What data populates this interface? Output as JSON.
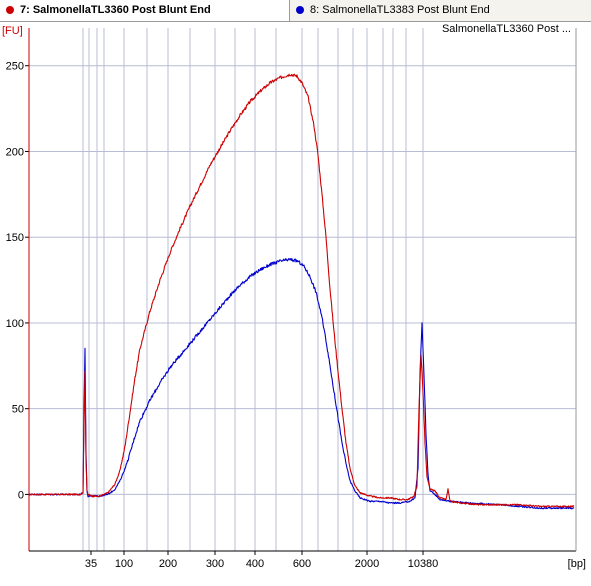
{
  "tabs": [
    {
      "label": "7: SalmonellaTL3360 Post Blunt End",
      "color": "#cc0000",
      "active": true
    },
    {
      "label": "8: SalmonellaTL3383 Post Blunt End",
      "color": "#0000cc",
      "active": false
    }
  ],
  "chart_data": {
    "type": "line",
    "title": "SalmonellaTL3360 Post ...",
    "ylabel": "[FU]",
    "xlabel": "[bp]",
    "ylim": [
      -33,
      272
    ],
    "yticks": [
      0,
      50,
      100,
      150,
      200,
      250
    ],
    "xtick_labels": [
      {
        "label": "35",
        "t": 91
      },
      {
        "label": "100",
        "t": 124
      },
      {
        "label": "200",
        "t": 168
      },
      {
        "label": "300",
        "t": 215
      },
      {
        "label": "400",
        "t": 255
      },
      {
        "label": "600",
        "t": 302
      },
      {
        "label": "2000",
        "t": 367
      },
      {
        "label": "10380",
        "t": 423
      }
    ],
    "x_unit_note": "t = migration time index (axis is non-linear in bp)",
    "grid": true,
    "series": [
      {
        "name": "7: SalmonellaTL3360 Post Blunt End",
        "color": "#cc0000",
        "points": [
          [
            29,
            0
          ],
          [
            40,
            0
          ],
          [
            60,
            0
          ],
          [
            80,
            0
          ],
          [
            83,
            1
          ],
          [
            84,
            40
          ],
          [
            85,
            72
          ],
          [
            86,
            20
          ],
          [
            87,
            2
          ],
          [
            88,
            0
          ],
          [
            92,
            -1
          ],
          [
            100,
            -1
          ],
          [
            108,
            1
          ],
          [
            115,
            6
          ],
          [
            120,
            14
          ],
          [
            125,
            28
          ],
          [
            130,
            48
          ],
          [
            135,
            68
          ],
          [
            140,
            85
          ],
          [
            150,
            107
          ],
          [
            160,
            125
          ],
          [
            170,
            141
          ],
          [
            180,
            155
          ],
          [
            190,
            168
          ],
          [
            200,
            180
          ],
          [
            210,
            192
          ],
          [
            220,
            202
          ],
          [
            230,
            212
          ],
          [
            240,
            221
          ],
          [
            250,
            229
          ],
          [
            260,
            235
          ],
          [
            270,
            240
          ],
          [
            280,
            243
          ],
          [
            290,
            245
          ],
          [
            297,
            244
          ],
          [
            302,
            240
          ],
          [
            308,
            232
          ],
          [
            314,
            215
          ],
          [
            318,
            198
          ],
          [
            322,
            175
          ],
          [
            326,
            150
          ],
          [
            330,
            120
          ],
          [
            334,
            95
          ],
          [
            338,
            72
          ],
          [
            342,
            50
          ],
          [
            346,
            30
          ],
          [
            350,
            15
          ],
          [
            355,
            5
          ],
          [
            360,
            1
          ],
          [
            370,
            -1
          ],
          [
            380,
            -2
          ],
          [
            390,
            -2
          ],
          [
            400,
            -3
          ],
          [
            408,
            -3
          ],
          [
            414,
            -1
          ],
          [
            417,
            5
          ],
          [
            419,
            50
          ],
          [
            421,
            82
          ],
          [
            423,
            60
          ],
          [
            425,
            30
          ],
          [
            427,
            10
          ],
          [
            430,
            3
          ],
          [
            435,
            2
          ],
          [
            440,
            -2
          ],
          [
            446,
            -3
          ],
          [
            448,
            3
          ],
          [
            450,
            -4
          ],
          [
            460,
            -5
          ],
          [
            480,
            -6
          ],
          [
            500,
            -6
          ],
          [
            520,
            -6
          ],
          [
            540,
            -7
          ],
          [
            560,
            -7
          ],
          [
            574,
            -7
          ]
        ]
      },
      {
        "name": "8: SalmonellaTL3383 Post Blunt End",
        "color": "#0000cc",
        "points": [
          [
            29,
            0
          ],
          [
            40,
            0
          ],
          [
            60,
            0
          ],
          [
            80,
            0
          ],
          [
            83,
            1
          ],
          [
            84,
            50
          ],
          [
            85,
            85
          ],
          [
            86,
            25
          ],
          [
            87,
            2
          ],
          [
            88,
            -1
          ],
          [
            92,
            -1
          ],
          [
            100,
            -1
          ],
          [
            108,
            0
          ],
          [
            115,
            3
          ],
          [
            120,
            8
          ],
          [
            125,
            15
          ],
          [
            130,
            24
          ],
          [
            135,
            34
          ],
          [
            140,
            43
          ],
          [
            150,
            55
          ],
          [
            160,
            65
          ],
          [
            170,
            74
          ],
          [
            180,
            81
          ],
          [
            190,
            88
          ],
          [
            200,
            95
          ],
          [
            210,
            102
          ],
          [
            220,
            109
          ],
          [
            230,
            116
          ],
          [
            240,
            122
          ],
          [
            250,
            127
          ],
          [
            260,
            131
          ],
          [
            270,
            134
          ],
          [
            280,
            136
          ],
          [
            290,
            137
          ],
          [
            298,
            136
          ],
          [
            304,
            133
          ],
          [
            310,
            127
          ],
          [
            316,
            118
          ],
          [
            322,
            103
          ],
          [
            326,
            90
          ],
          [
            330,
            75
          ],
          [
            334,
            60
          ],
          [
            338,
            45
          ],
          [
            342,
            30
          ],
          [
            346,
            18
          ],
          [
            350,
            8
          ],
          [
            355,
            2
          ],
          [
            360,
            -2
          ],
          [
            370,
            -4
          ],
          [
            380,
            -4
          ],
          [
            390,
            -5
          ],
          [
            400,
            -5
          ],
          [
            410,
            -4
          ],
          [
            415,
            -2
          ],
          [
            418,
            15
          ],
          [
            420,
            70
          ],
          [
            422,
            100
          ],
          [
            424,
            70
          ],
          [
            426,
            35
          ],
          [
            428,
            12
          ],
          [
            430,
            2
          ],
          [
            435,
            0
          ],
          [
            440,
            -3
          ],
          [
            450,
            -4
          ],
          [
            470,
            -5
          ],
          [
            500,
            -6
          ],
          [
            520,
            -7
          ],
          [
            540,
            -8
          ],
          [
            560,
            -8
          ],
          [
            574,
            -8
          ]
        ]
      }
    ]
  }
}
